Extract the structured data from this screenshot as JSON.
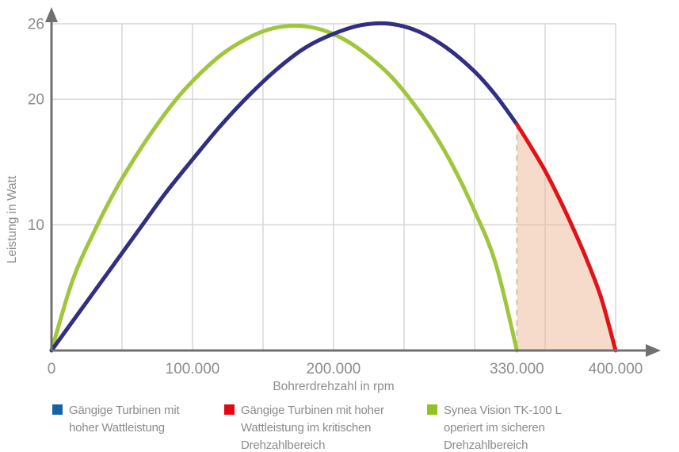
{
  "chart_data": {
    "type": "line",
    "title": "",
    "xlabel": "Bohrerdrehzahl in rpm",
    "ylabel": "Leistung in Watt",
    "xlim": [
      0,
      400000
    ],
    "ylim": [
      0,
      26
    ],
    "x_ticks": [
      {
        "rpm": 0,
        "label": "0"
      },
      {
        "rpm": 100000,
        "label": "100.000"
      },
      {
        "rpm": 200000,
        "label": "200.000"
      },
      {
        "rpm": 330000,
        "label": "330.000"
      },
      {
        "rpm": 400000,
        "label": "400.000"
      }
    ],
    "y_ticks": [
      {
        "watt": 10,
        "label": "10"
      },
      {
        "watt": 20,
        "label": "20"
      },
      {
        "watt": 26,
        "label": "26"
      }
    ],
    "grid": {
      "x_step": 50000,
      "x_max": 400000,
      "y_values": [
        10,
        20,
        26
      ]
    },
    "critical_region": {
      "from_rpm": 330000,
      "to_rpm": 400000,
      "fill": "rgba(238,184,152,0.5)",
      "dash_color": "#d2c0b5"
    },
    "series": [
      {
        "id": "standard",
        "name": "Gängige Turbinen mit hoher Wattleistung",
        "color": "#322f82",
        "points": [
          [
            0,
            0
          ],
          [
            20000,
            3.1
          ],
          [
            40000,
            6.2
          ],
          [
            60000,
            9.3
          ],
          [
            80000,
            12.4
          ],
          [
            100000,
            15.2
          ],
          [
            120000,
            17.9
          ],
          [
            140000,
            20.3
          ],
          [
            160000,
            22.4
          ],
          [
            180000,
            24.1
          ],
          [
            200000,
            25.2
          ],
          [
            220000,
            25.9
          ],
          [
            240000,
            26.0
          ],
          [
            260000,
            25.4
          ],
          [
            280000,
            24.1
          ],
          [
            300000,
            22.2
          ],
          [
            315000,
            20.3
          ],
          [
            330000,
            18.0
          ]
        ]
      },
      {
        "id": "critical",
        "name": "Gängige Turbinen mit hoher Wattleistung im kritischen Drehzahlbereich",
        "color": "#e01418",
        "points": [
          [
            330000,
            18.0
          ],
          [
            340000,
            16.2
          ],
          [
            350000,
            14.3
          ],
          [
            360000,
            12.1
          ],
          [
            370000,
            9.7
          ],
          [
            380000,
            7.1
          ],
          [
            390000,
            4.1
          ],
          [
            400000,
            0
          ]
        ]
      },
      {
        "id": "synea",
        "name": "Synea Vision TK-100 L operiert im sicheren Drehzahlbereich",
        "color": "#9fc63c",
        "points": [
          [
            0,
            0
          ],
          [
            15000,
            5.6
          ],
          [
            30000,
            9.4
          ],
          [
            45000,
            12.7
          ],
          [
            60000,
            15.5
          ],
          [
            75000,
            18.0
          ],
          [
            90000,
            20.2
          ],
          [
            105000,
            22.0
          ],
          [
            120000,
            23.5
          ],
          [
            135000,
            24.6
          ],
          [
            150000,
            25.4
          ],
          [
            165000,
            25.8
          ],
          [
            180000,
            25.8
          ],
          [
            195000,
            25.4
          ],
          [
            210000,
            24.6
          ],
          [
            225000,
            23.4
          ],
          [
            240000,
            21.9
          ],
          [
            255000,
            19.9
          ],
          [
            270000,
            17.5
          ],
          [
            285000,
            14.6
          ],
          [
            300000,
            11.1
          ],
          [
            315000,
            6.9
          ],
          [
            330000,
            0
          ]
        ]
      }
    ]
  },
  "colors": {
    "axis": "#707070",
    "grid": "#d7d7d7",
    "text": "#8c8c8c"
  },
  "legend": {
    "items": [
      {
        "color": "#1464a5",
        "lines": [
          "Gängige Turbinen mit",
          "hoher Wattleistung"
        ]
      },
      {
        "color": "#e30613",
        "lines": [
          "Gängige Turbinen mit hoher",
          "Wattleistung im kritischen",
          "Drehzahlbereich"
        ]
      },
      {
        "color": "#93c11f",
        "lines": [
          "Synea Vision TK-100 L",
          "operiert im sicheren",
          "Drehzahlbereich"
        ]
      }
    ]
  }
}
